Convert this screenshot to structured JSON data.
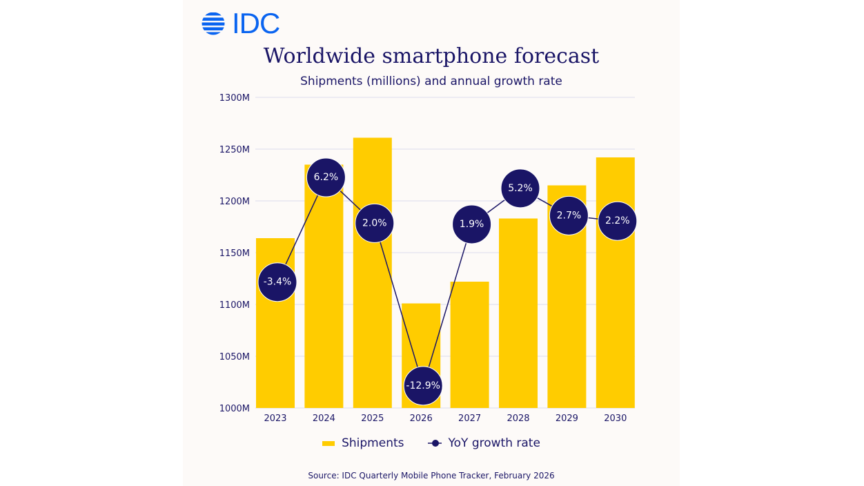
{
  "logo": {
    "text": "IDC",
    "color": "#0a64f0"
  },
  "chart_data": {
    "type": "bar+line",
    "title": "Worldwide smartphone forecast",
    "subtitle": "Shipments (millions) and annual growth rate",
    "categories": [
      "2023",
      "2024",
      "2025",
      "2026",
      "2027",
      "2028",
      "2029",
      "2030"
    ],
    "y_ticks": [
      "1000M",
      "1050M",
      "1100M",
      "1150M",
      "1200M",
      "1250M",
      "1300M"
    ],
    "ylim": [
      1000,
      1300
    ],
    "grid": true,
    "legend_position": "bottom",
    "series": [
      {
        "name": "Shipments",
        "type": "bar",
        "color": "#ffcc00",
        "values": [
          1164,
          1235,
          1261,
          1101,
          1122,
          1183,
          1215,
          1242
        ]
      },
      {
        "name": "YoY growth rate",
        "type": "line",
        "color": "#1a1566",
        "values": [
          -3.4,
          6.2,
          2.0,
          -12.9,
          1.9,
          5.2,
          2.7,
          2.2
        ],
        "labels": [
          "-3.4%",
          "6.2%",
          "2.0%",
          "-12.9%",
          "1.9%",
          "5.2%",
          "2.7%",
          "2.2%"
        ]
      }
    ]
  },
  "source": "Source:  IDC Quarterly Mobile Phone Tracker, February 2026"
}
